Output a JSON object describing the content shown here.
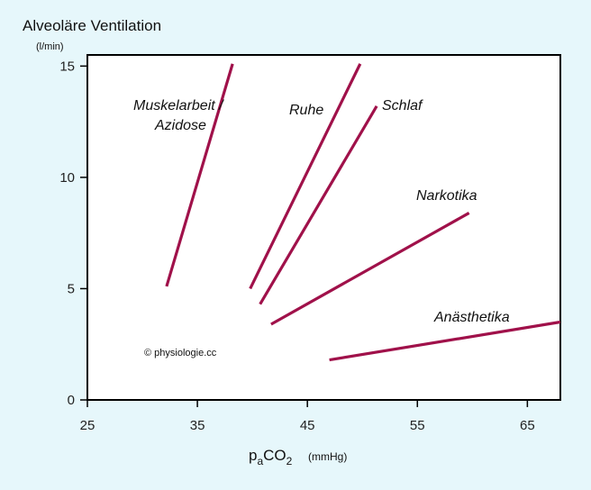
{
  "chart_data": {
    "type": "line",
    "title": "Alveoläre Ventilation",
    "y_unit": "(l/min)",
    "xlabel": {
      "main_a": "p",
      "subscript": "a",
      "main_b": "CO",
      "subscript2": "2",
      "unit": "(mmHg)"
    },
    "xlim": [
      25,
      68
    ],
    "ylim": [
      0,
      15.5
    ],
    "x_ticks": [
      25,
      35,
      45,
      55,
      65
    ],
    "y_ticks": [
      0,
      5,
      10,
      15
    ],
    "grid": false,
    "line_color": "#a0114a",
    "series": [
      {
        "name": "Muskelarbeit /",
        "name2": "Azidose",
        "points": [
          [
            32.2,
            5.1
          ],
          [
            38.2,
            15.1
          ]
        ]
      },
      {
        "name": "Ruhe",
        "points": [
          [
            39.8,
            5.0
          ],
          [
            49.8,
            15.1
          ]
        ]
      },
      {
        "name": "Schlaf",
        "points": [
          [
            40.7,
            4.3
          ],
          [
            51.3,
            13.2
          ]
        ]
      },
      {
        "name": "Narkotika",
        "points": [
          [
            41.7,
            3.4
          ],
          [
            59.7,
            8.4
          ]
        ]
      },
      {
        "name": "Anästhetika",
        "points": [
          [
            47.0,
            1.8
          ],
          [
            68.0,
            3.5
          ]
        ]
      }
    ],
    "annotation": "© physiologie.cc"
  }
}
